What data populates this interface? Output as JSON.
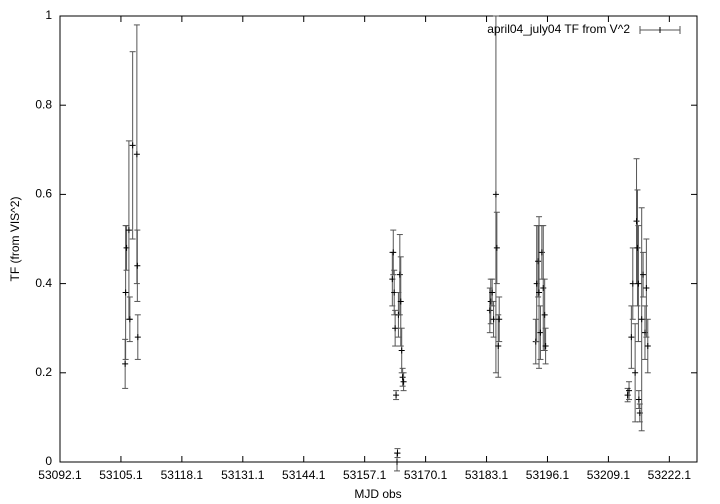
{
  "chart_data": {
    "type": "errorbar",
    "xlabel": "MJD  obs",
    "ylabel": "TF (from VIS^2)",
    "xlim": [
      53092.1,
      53228
    ],
    "ylim": [
      0,
      1
    ],
    "xticks": [
      53092.1,
      53105.1,
      53118.1,
      53131.1,
      53144.1,
      53157.1,
      53170.1,
      53183.1,
      53196.1,
      53209.1,
      53222.1
    ],
    "yticks": [
      0,
      0.2,
      0.4,
      0.6,
      0.8,
      1
    ],
    "legend": "top-right",
    "series": [
      {
        "name": "april04_july04 TF from V^2",
        "color": "#555555",
        "x": [
          53106.0,
          53106.1,
          53106.3,
          53106.8,
          53107.0,
          53107.6,
          53108.5,
          53108.6,
          53108.7,
          53163.0,
          53163.2,
          53163.4,
          53163.6,
          53163.8,
          53164.0,
          53164.1,
          53164.3,
          53164.6,
          53164.8,
          53165.0,
          53165.2,
          53165.4,
          53183.8,
          53184.0,
          53184.3,
          53184.6,
          53185.1,
          53185.3,
          53185.6,
          53185.8,
          53193.6,
          53193.8,
          53194.1,
          53194.3,
          53194.6,
          53194.9,
          53195.2,
          53195.5,
          53195.7,
          53213.2,
          53213.5,
          53214.0,
          53214.3,
          53214.8,
          53215.1,
          53215.3,
          53215.5,
          53215.6,
          53215.8,
          53216.2,
          53216.5,
          53216.9,
          53217.2,
          53217.5
        ],
        "values": [
          0.22,
          0.38,
          0.48,
          0.52,
          0.32,
          0.71,
          0.69,
          0.44,
          0.28,
          0.41,
          0.47,
          0.38,
          0.3,
          0.15,
          0.0,
          0.02,
          0.33,
          0.42,
          0.36,
          0.25,
          0.19,
          0.18,
          0.34,
          0.36,
          0.38,
          0.32,
          0.6,
          0.48,
          0.26,
          0.32,
          0.27,
          0.4,
          0.45,
          0.38,
          0.29,
          0.47,
          0.39,
          0.33,
          0.26,
          0.15,
          0.16,
          0.28,
          0.4,
          0.2,
          0.54,
          0.48,
          0.4,
          0.14,
          0.11,
          0.32,
          0.42,
          0.29,
          0.39,
          0.26
        ],
        "errors": [
          0.055,
          0.15,
          0.05,
          0.2,
          0.05,
          0.21,
          0.29,
          0.08,
          0.05,
          0.06,
          0.05,
          0.05,
          0.04,
          0.01,
          0.02,
          0.01,
          0.05,
          0.09,
          0.1,
          0.05,
          0.02,
          0.02,
          0.05,
          0.05,
          0.03,
          0.04,
          0.4,
          0.08,
          0.07,
          0.05,
          0.05,
          0.13,
          0.08,
          0.17,
          0.06,
          0.06,
          0.14,
          0.08,
          0.04,
          0.015,
          0.02,
          0.07,
          0.08,
          0.11,
          0.14,
          0.13,
          0.13,
          0.02,
          0.02,
          0.25,
          0.05,
          0.06,
          0.11,
          0.06
        ]
      }
    ]
  }
}
